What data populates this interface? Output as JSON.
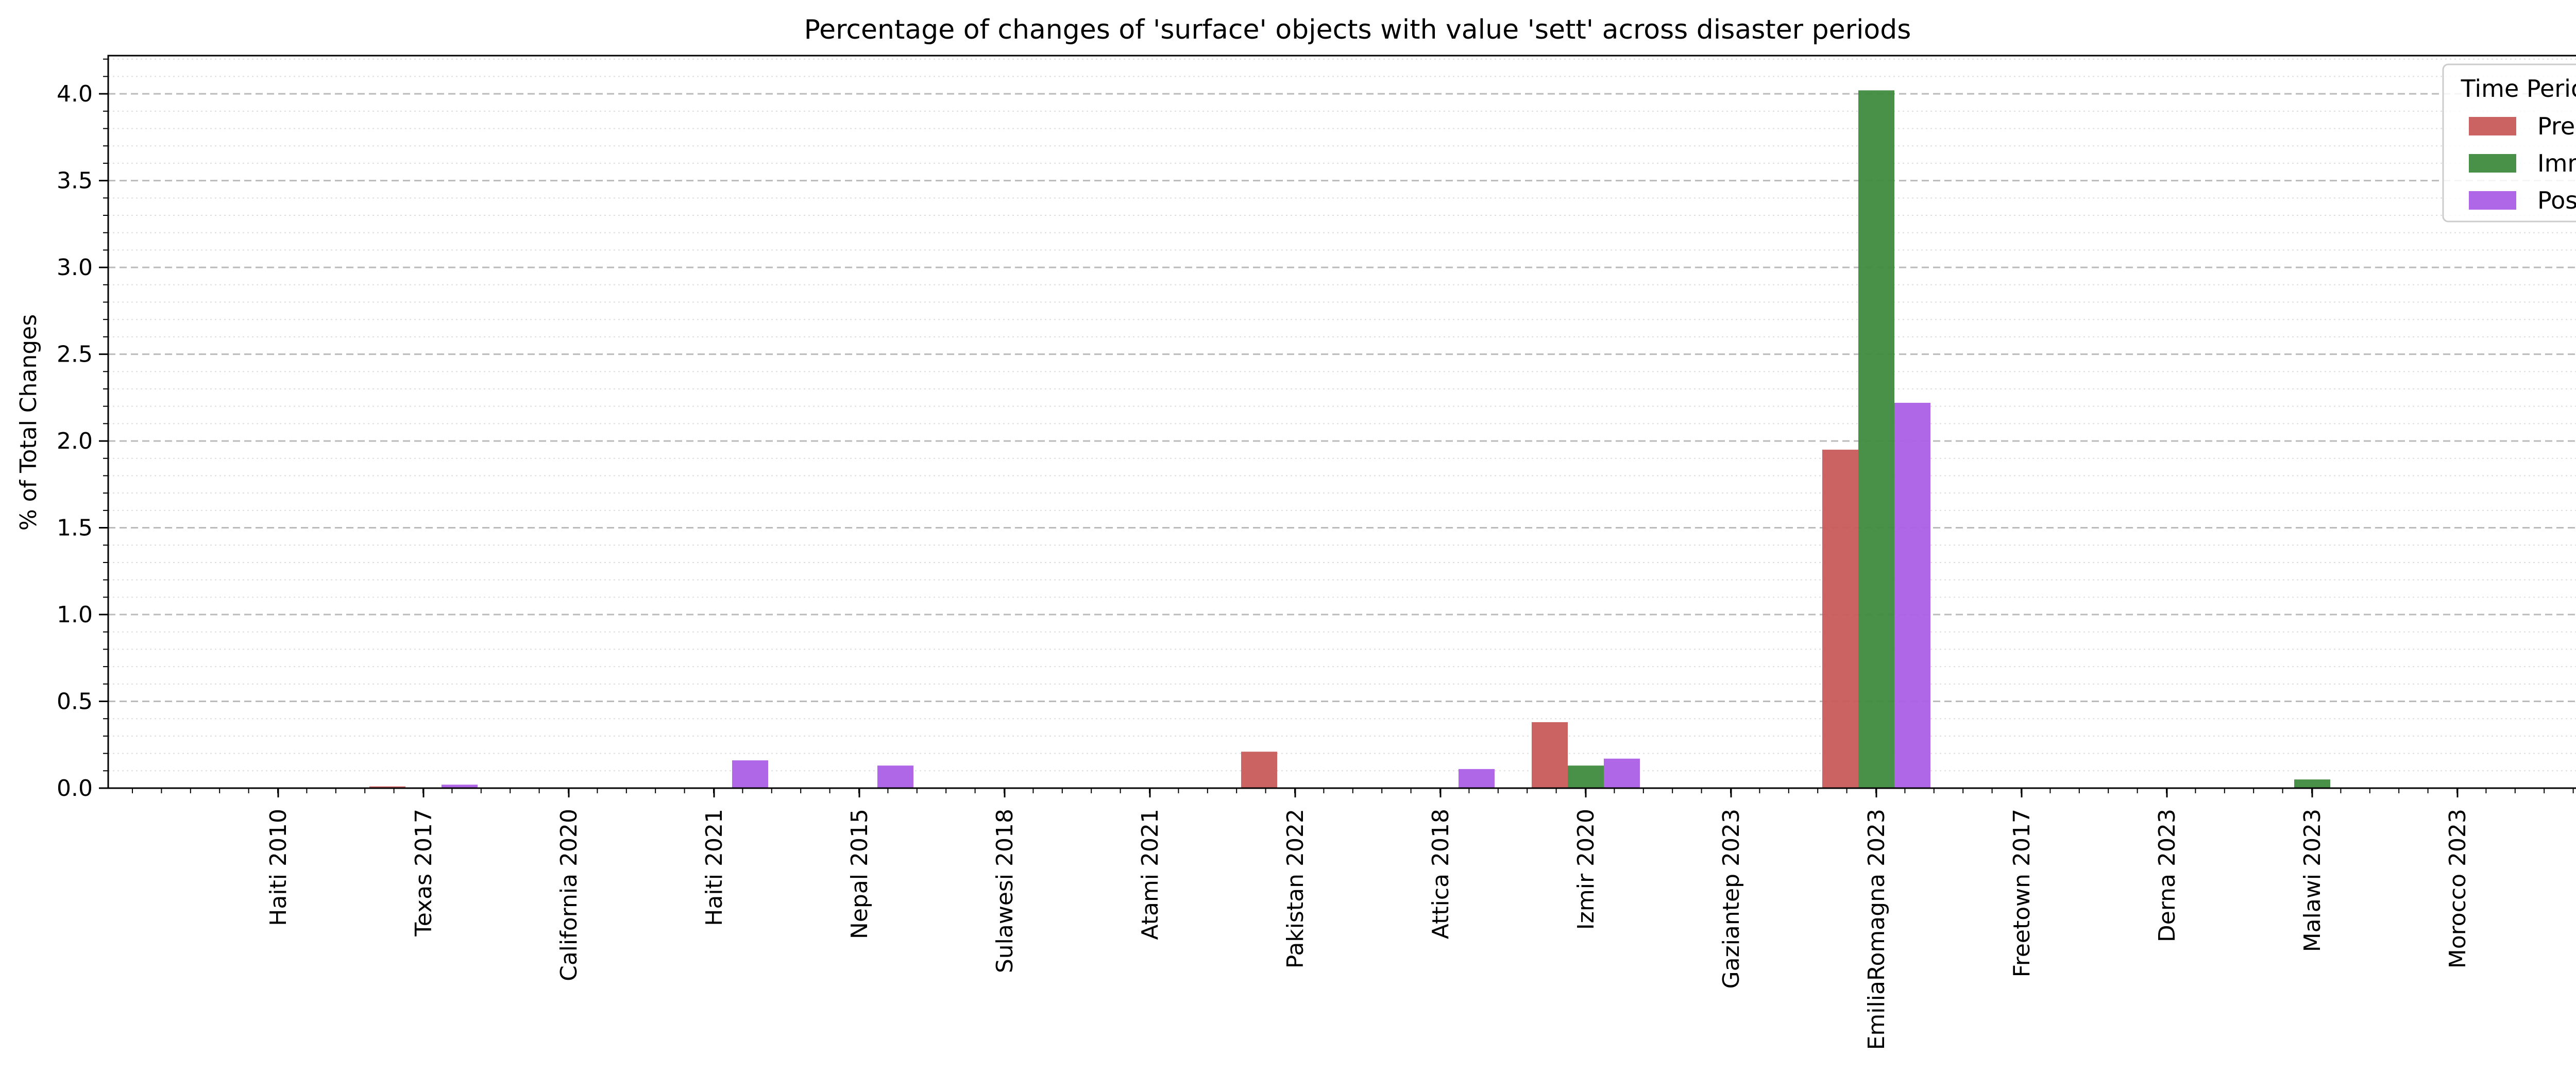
{
  "chart_data": {
    "type": "bar",
    "title": "Percentage of changes of 'surface' objects with value 'sett' across disaster periods",
    "ylabel": "% of Total Changes",
    "xlabel": "",
    "ylim": [
      0,
      4.22
    ],
    "yticks": [
      "0.0",
      "0.5",
      "1.0",
      "1.5",
      "2.0",
      "2.5",
      "3.0",
      "3.5",
      "4.0"
    ],
    "grid": {
      "major": "dashed",
      "minor": "dotted"
    },
    "legend": {
      "title": "Time Period",
      "placement": "top-right"
    },
    "categories": [
      "Haiti 2010",
      "Texas 2017",
      "California 2020",
      "Haiti 2021",
      "Nepal 2015",
      "Sulawesi 2018",
      "Atami 2021",
      "Pakistan 2022",
      "Attica 2018",
      "Izmir 2020",
      "Gaziantep 2023",
      "EmiliaRomagna 2023",
      "Freetown 2017",
      "Derna 2023",
      "Malawi 2023",
      "Morocco 2023"
    ],
    "series": [
      {
        "name": "Pre",
        "color": "#c85b5b",
        "values": [
          0,
          0.01,
          0,
          0,
          0,
          0,
          0,
          0.21,
          0,
          0.38,
          0,
          1.95,
          0,
          0,
          0,
          0
        ]
      },
      {
        "name": "Imm",
        "color": "#3f8a3f",
        "values": [
          0,
          0,
          0,
          0,
          0,
          0,
          0,
          0,
          0,
          0.13,
          0,
          4.02,
          0,
          0,
          0.05,
          0
        ]
      },
      {
        "name": "Post",
        "color": "#ab5fe6",
        "values": [
          0,
          0.02,
          0,
          0.16,
          0.13,
          0,
          0,
          0,
          0.11,
          0.17,
          0,
          2.22,
          0,
          0,
          0,
          0
        ]
      }
    ]
  }
}
